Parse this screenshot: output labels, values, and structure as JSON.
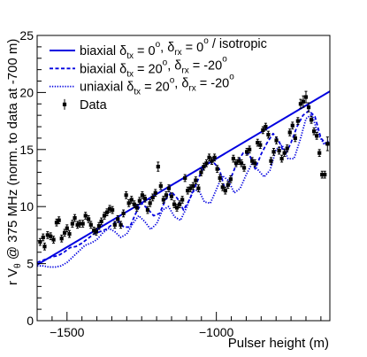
{
  "chart_data": {
    "type": "scatter",
    "xlabel": "Pulser height (m)",
    "ylabel_main": "r V",
    "ylabel_sub": "θ",
    "ylabel_rest": " @ 375 MHz (norm. to data at -700 m)",
    "xlim": [
      -1600,
      -620
    ],
    "ylim": [
      0,
      25
    ],
    "x_ticks": [
      -1500,
      -1000
    ],
    "x_tick_labels": [
      "−1500",
      "−1000"
    ],
    "y_ticks": [
      0,
      5,
      10,
      15,
      20,
      25
    ],
    "grid": false,
    "legend_position": "top-left",
    "legend": [
      {
        "key": "isotropic",
        "style": "solid",
        "color": "#0000e0",
        "parts": [
          [
            "biaxial δ",
            ""
          ],
          [
            "tx",
            "sub"
          ],
          [
            " = 0",
            ""
          ],
          [
            "o",
            "sup"
          ],
          [
            ", δ",
            ""
          ],
          [
            "rx",
            "sub"
          ],
          [
            " = 0",
            ""
          ],
          [
            "o",
            "sup"
          ],
          [
            " / isotropic",
            ""
          ]
        ]
      },
      {
        "key": "biaxial",
        "style": "dashed",
        "color": "#0000e0",
        "parts": [
          [
            "biaxial δ",
            ""
          ],
          [
            "tx",
            "sub"
          ],
          [
            " = 20",
            ""
          ],
          [
            "o",
            "sup"
          ],
          [
            ", δ",
            ""
          ],
          [
            "rx",
            "sub"
          ],
          [
            " = -20",
            ""
          ],
          [
            "o",
            "sup"
          ]
        ]
      },
      {
        "key": "uniaxial",
        "style": "dotted",
        "color": "#0000e0",
        "parts": [
          [
            "uniaxial δ",
            ""
          ],
          [
            "tx",
            "sub"
          ],
          [
            " = 20",
            ""
          ],
          [
            "o",
            "sup"
          ],
          [
            ", δ",
            ""
          ],
          [
            "rx",
            "sub"
          ],
          [
            " = -20",
            ""
          ],
          [
            "o",
            "sup"
          ]
        ]
      },
      {
        "key": "data",
        "style": "marker",
        "color": "#000000",
        "parts": [
          [
            "Data",
            ""
          ]
        ]
      }
    ],
    "series": [
      {
        "key": "isotropic",
        "type": "line",
        "x": [
          -1600,
          -620
        ],
        "y": [
          4.9,
          20.1
        ]
      },
      {
        "key": "biaxial",
        "type": "line",
        "x": [
          -1600,
          -1570,
          -1550,
          -1530,
          -1510,
          -1490,
          -1470,
          -1450,
          -1430,
          -1410,
          -1390,
          -1370,
          -1350,
          -1330,
          -1310,
          -1290,
          -1270,
          -1250,
          -1230,
          -1210,
          -1190,
          -1170,
          -1150,
          -1130,
          -1110,
          -1090,
          -1070,
          -1050,
          -1030,
          -1010,
          -990,
          -970,
          -950,
          -930,
          -910,
          -890,
          -870,
          -850,
          -830,
          -810,
          -790,
          -770,
          -750,
          -730,
          -710,
          -690,
          -670,
          -650,
          -630,
          -620
        ],
        "y": [
          5.1,
          5.4,
          5.6,
          5.7,
          6.0,
          6.4,
          6.5,
          6.8,
          7.2,
          7.6,
          7.8,
          8.0,
          8.4,
          8.8,
          8.2,
          8.2,
          9.4,
          10.3,
          9.8,
          9.2,
          9.4,
          10.6,
          11.3,
          10.7,
          9.7,
          10.6,
          11.8,
          13.1,
          13.8,
          13.9,
          13.3,
          11.4,
          12.6,
          13.9,
          14.7,
          14.6,
          13.3,
          14.6,
          15.6,
          16.4,
          15.7,
          14.5,
          15.6,
          17.0,
          18.0,
          18.4,
          17.9,
          16.0,
          15.4,
          15.4
        ]
      },
      {
        "key": "uniaxial",
        "type": "line",
        "x": [
          -1600,
          -1580,
          -1560,
          -1540,
          -1520,
          -1500,
          -1480,
          -1460,
          -1440,
          -1420,
          -1400,
          -1380,
          -1360,
          -1340,
          -1320,
          -1300,
          -1280,
          -1260,
          -1240,
          -1220,
          -1200,
          -1180,
          -1160,
          -1140,
          -1120,
          -1100,
          -1080,
          -1060,
          -1040,
          -1020,
          -1000,
          -980,
          -960,
          -940,
          -920,
          -900,
          -880,
          -860,
          -840,
          -820,
          -800,
          -780,
          -760,
          -740,
          -720,
          -700,
          -680,
          -660,
          -640,
          -620
        ],
        "y": [
          4.8,
          4.8,
          4.7,
          4.7,
          4.8,
          5.1,
          5.6,
          6.1,
          6.6,
          6.8,
          7.1,
          7.7,
          8.1,
          7.8,
          7.3,
          7.6,
          8.5,
          9.2,
          8.7,
          8.0,
          8.5,
          9.7,
          10.0,
          9.1,
          8.8,
          9.9,
          11.3,
          11.5,
          10.4,
          10.3,
          11.5,
          12.7,
          12.3,
          11.2,
          11.6,
          12.8,
          13.8,
          13.2,
          12.6,
          13.2,
          15.0,
          15.4,
          14.2,
          14.2,
          15.8,
          17.7,
          18.1,
          16.4,
          15.5,
          15.8
        ]
      },
      {
        "key": "data",
        "type": "scatter",
        "points": [
          [
            -1590,
            6.9,
            0.3
          ],
          [
            -1580,
            7.3,
            0.3
          ],
          [
            -1575,
            6.5,
            0.3
          ],
          [
            -1565,
            7.5,
            0.3
          ],
          [
            -1555,
            7.4,
            0.3
          ],
          [
            -1545,
            7.1,
            0.3
          ],
          [
            -1535,
            8.6,
            0.3
          ],
          [
            -1527,
            8.8,
            0.3
          ],
          [
            -1518,
            7.2,
            0.3
          ],
          [
            -1508,
            7.7,
            0.3
          ],
          [
            -1500,
            8.1,
            0.3
          ],
          [
            -1492,
            7.6,
            0.3
          ],
          [
            -1482,
            8.5,
            0.3
          ],
          [
            -1474,
            9.0,
            0.3
          ],
          [
            -1465,
            8.4,
            0.3
          ],
          [
            -1457,
            8.5,
            0.3
          ],
          [
            -1447,
            8.5,
            0.3
          ],
          [
            -1438,
            9.2,
            0.3
          ],
          [
            -1428,
            8.9,
            0.3
          ],
          [
            -1420,
            8.4,
            0.3
          ],
          [
            -1410,
            7.9,
            0.3
          ],
          [
            -1402,
            7.8,
            0.3
          ],
          [
            -1393,
            8.3,
            0.3
          ],
          [
            -1385,
            8.7,
            0.3
          ],
          [
            -1375,
            9.2,
            0.3
          ],
          [
            -1366,
            9.5,
            0.3
          ],
          [
            -1357,
            9.8,
            0.3
          ],
          [
            -1348,
            9.7,
            0.3
          ],
          [
            -1340,
            8.4,
            0.3
          ],
          [
            -1330,
            8.9,
            0.3
          ],
          [
            -1320,
            8.4,
            0.3
          ],
          [
            -1311,
            9.4,
            0.3
          ],
          [
            -1302,
            11.0,
            0.3
          ],
          [
            -1293,
            10.3,
            0.3
          ],
          [
            -1284,
            10.6,
            0.3
          ],
          [
            -1275,
            10.2,
            0.3
          ],
          [
            -1266,
            9.9,
            0.3
          ],
          [
            -1257,
            10.5,
            0.3
          ],
          [
            -1248,
            11.0,
            0.3
          ],
          [
            -1239,
            10.7,
            0.3
          ],
          [
            -1230,
            9.7,
            0.3
          ],
          [
            -1222,
            10.3,
            0.3
          ],
          [
            -1213,
            10.8,
            0.3
          ],
          [
            -1204,
            11.2,
            0.3
          ],
          [
            -1195,
            13.5,
            0.4
          ],
          [
            -1186,
            11.8,
            0.3
          ],
          [
            -1177,
            10.6,
            0.3
          ],
          [
            -1168,
            11.0,
            0.3
          ],
          [
            -1159,
            11.6,
            0.3
          ],
          [
            -1150,
            10.9,
            0.3
          ],
          [
            -1141,
            10.2,
            0.3
          ],
          [
            -1132,
            9.9,
            0.3
          ],
          [
            -1123,
            10.2,
            0.3
          ],
          [
            -1114,
            10.6,
            0.3
          ],
          [
            -1105,
            12.5,
            0.3
          ],
          [
            -1096,
            11.4,
            0.3
          ],
          [
            -1087,
            11.6,
            0.3
          ],
          [
            -1078,
            11.8,
            0.3
          ],
          [
            -1069,
            12.3,
            0.3
          ],
          [
            -1060,
            11.6,
            0.3
          ],
          [
            -1051,
            13.0,
            0.3
          ],
          [
            -1042,
            13.5,
            0.3
          ],
          [
            -1033,
            13.8,
            0.3
          ],
          [
            -1024,
            14.3,
            0.3
          ],
          [
            -1015,
            14.0,
            0.3
          ],
          [
            -1006,
            14.3,
            0.3
          ],
          [
            -997,
            13.3,
            0.3
          ],
          [
            -988,
            12.5,
            0.3
          ],
          [
            -979,
            11.7,
            0.3
          ],
          [
            -970,
            11.4,
            0.3
          ],
          [
            -961,
            11.9,
            0.3
          ],
          [
            -952,
            12.4,
            0.3
          ],
          [
            -943,
            14.2,
            0.3
          ],
          [
            -934,
            13.8,
            0.3
          ],
          [
            -925,
            14.0,
            0.3
          ],
          [
            -916,
            13.8,
            0.3
          ],
          [
            -907,
            13.4,
            0.3
          ],
          [
            -898,
            14.8,
            0.3
          ],
          [
            -889,
            15.0,
            0.3
          ],
          [
            -880,
            14.0,
            0.3
          ],
          [
            -871,
            13.8,
            0.3
          ],
          [
            -862,
            15.6,
            0.3
          ],
          [
            -853,
            15.4,
            0.3
          ],
          [
            -844,
            16.7,
            0.3
          ],
          [
            -835,
            17.0,
            0.3
          ],
          [
            -826,
            16.3,
            0.3
          ],
          [
            -817,
            14.0,
            0.3
          ],
          [
            -808,
            14.8,
            0.3
          ],
          [
            -799,
            15.8,
            0.3
          ],
          [
            -790,
            14.9,
            0.3
          ],
          [
            -781,
            14.2,
            0.3
          ],
          [
            -772,
            14.7,
            0.3
          ],
          [
            -763,
            15.1,
            0.3
          ],
          [
            -754,
            16.5,
            0.3
          ],
          [
            -745,
            17.1,
            0.3
          ],
          [
            -736,
            16.0,
            0.3
          ],
          [
            -727,
            17.5,
            0.3
          ],
          [
            -718,
            19.0,
            0.4
          ],
          [
            -709,
            19.2,
            0.5
          ],
          [
            -700,
            19.6,
            0.5
          ],
          [
            -691,
            18.7,
            0.4
          ],
          [
            -682,
            17.6,
            0.3
          ],
          [
            -673,
            16.6,
            0.3
          ],
          [
            -664,
            16.2,
            0.3
          ],
          [
            -655,
            14.7,
            0.3
          ],
          [
            -646,
            12.8,
            0.3
          ],
          [
            -637,
            12.8,
            0.3
          ],
          [
            -628,
            15.5,
            0.6
          ]
        ]
      }
    ]
  },
  "colors": {
    "model": "#0000e0",
    "data": "#000000",
    "axis": "#000000"
  }
}
